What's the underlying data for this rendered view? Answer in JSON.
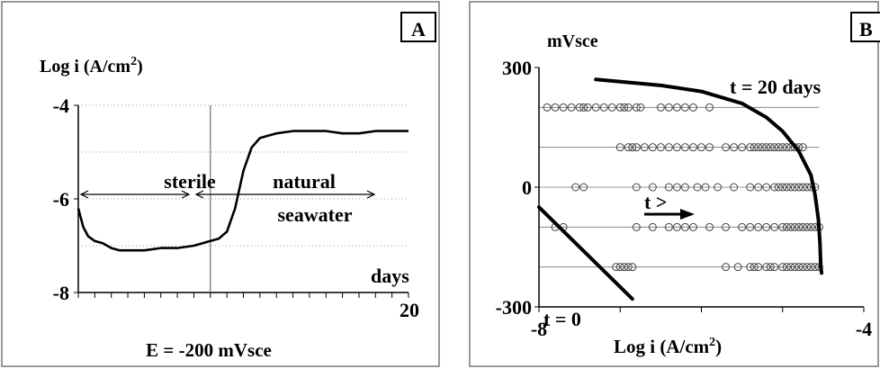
{
  "chart_data": [
    {
      "panel": "A",
      "type": "line",
      "ylabel_main": "Log i (A/cm",
      "ylabel_sup": "2",
      "ylabel_end": ")",
      "xlabel": "days",
      "x_end_label": "20",
      "footnote": "E = -200 mVsce",
      "ylim": [
        -8,
        -4
      ],
      "xlim": [
        0,
        20
      ],
      "yticks": [
        -4,
        -6,
        -8
      ],
      "grid_y": [
        -4,
        -5,
        -6,
        -7
      ],
      "marker_x": 8,
      "annotations": {
        "left": "sterile",
        "right_line1": "natural",
        "right_line2": "seawater"
      },
      "series": [
        {
          "x": [
            0,
            0.3,
            0.6,
            1,
            1.5,
            2,
            2.5,
            3,
            4,
            5,
            6,
            7,
            8,
            8.5,
            9,
            9.5,
            10,
            10.5,
            11,
            11.5,
            12,
            13,
            14,
            15,
            16,
            17,
            18,
            19,
            20
          ],
          "y": [
            -6.2,
            -6.6,
            -6.8,
            -6.9,
            -6.95,
            -7.05,
            -7.1,
            -7.1,
            -7.1,
            -7.05,
            -7.05,
            -7.0,
            -6.9,
            -6.85,
            -6.7,
            -6.2,
            -5.4,
            -4.9,
            -4.7,
            -4.65,
            -4.6,
            -4.55,
            -4.55,
            -4.55,
            -4.6,
            -4.6,
            -4.55,
            -4.55,
            -4.55
          ]
        }
      ]
    },
    {
      "panel": "B",
      "type": "scatter",
      "ylabel": "mVsce",
      "xlabel_main": "Log i (A/cm",
      "xlabel_sup": "2",
      "xlabel_end": ")",
      "xlim": [
        -8,
        -4
      ],
      "ylim": [
        -300,
        300
      ],
      "yticks": [
        300,
        0,
        -300
      ],
      "xticks": [
        -8,
        -4
      ],
      "annotations": {
        "t_final": "t = 20  days",
        "t_zero": "t = 0",
        "t_arrow": "t >"
      },
      "levels": [
        200,
        100,
        0,
        -100,
        -200
      ],
      "points": [
        {
          "y": 200,
          "x": [
            -7.9,
            -7.8,
            -7.7,
            -7.6,
            -7.5,
            -7.45,
            -7.4,
            -7.3,
            -7.2,
            -7.1,
            -7.0,
            -6.95,
            -6.9,
            -6.8,
            -6.75,
            -6.5,
            -6.4,
            -6.3,
            -6.2,
            -6.1,
            -5.9
          ]
        },
        {
          "y": 100,
          "x": [
            -7.0,
            -6.9,
            -6.85,
            -6.8,
            -6.7,
            -6.6,
            -6.5,
            -6.4,
            -6.3,
            -6.2,
            -6.1,
            -6.0,
            -5.9,
            -5.7,
            -5.6,
            -5.5,
            -5.4,
            -5.35,
            -5.3,
            -5.25,
            -5.2,
            -5.15,
            -5.1,
            -5.05,
            -5.0,
            -4.95,
            -4.9,
            -4.85,
            -4.8,
            -4.75
          ]
        },
        {
          "y": 0,
          "x": [
            -7.55,
            -7.45,
            -6.8,
            -6.6,
            -6.4,
            -6.3,
            -6.2,
            -6.05,
            -5.95,
            -5.8,
            -5.6,
            -5.4,
            -5.3,
            -5.2,
            -5.1,
            -5.05,
            -5.0,
            -4.95,
            -4.9,
            -4.85,
            -4.8,
            -4.75,
            -4.7,
            -4.65,
            -4.6
          ]
        },
        {
          "y": -100,
          "x": [
            -7.8,
            -7.7,
            -6.8,
            -6.6,
            -6.4,
            -6.3,
            -6.2,
            -6.1,
            -5.9,
            -5.7,
            -5.5,
            -5.4,
            -5.3,
            -5.2,
            -5.1,
            -5.0,
            -4.95,
            -4.9,
            -4.85,
            -4.8,
            -4.75,
            -4.7,
            -4.65,
            -4.6,
            -4.55
          ]
        },
        {
          "y": -200,
          "x": [
            -7.05,
            -7.0,
            -6.95,
            -6.9,
            -6.85,
            -5.7,
            -5.55,
            -5.4,
            -5.35,
            -5.3,
            -5.2,
            -5.15,
            -5.1,
            -5.0,
            -4.95,
            -4.9,
            -4.85,
            -4.8,
            -4.75,
            -4.7,
            -4.65,
            -4.6,
            -4.55
          ]
        }
      ],
      "curve_t20": {
        "x": [
          -7.3,
          -6.5,
          -6.0,
          -5.5,
          -5.2,
          -5.0,
          -4.8,
          -4.65,
          -4.6,
          -4.56,
          -4.54,
          -4.53,
          -4.52
        ],
        "y": [
          270,
          255,
          240,
          210,
          175,
          140,
          90,
          30,
          -20,
          -80,
          -140,
          -200,
          -215
        ]
      },
      "curve_t0": {
        "x": [
          -8,
          -6.85
        ],
        "y": [
          -50,
          -280
        ]
      }
    }
  ]
}
